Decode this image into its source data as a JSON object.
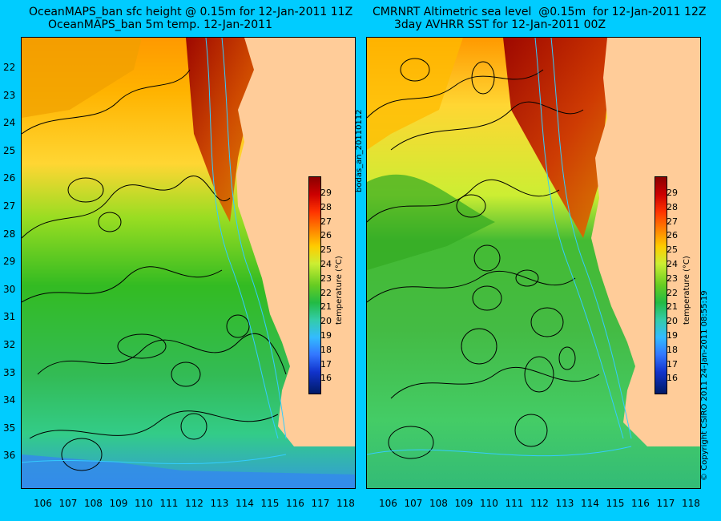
{
  "left_panel": {
    "title_line1": "OceanMAPS_ban sfc height @ 0.15m for 12-Jan-2011 11Z",
    "title_line2": "OceanMAPS_ban 5m temp. 12-Jan-2011"
  },
  "right_panel": {
    "title_line1": "CMRNRT Altimetric sea level  @0.15m  for 12-Jan-2011 12Z",
    "title_line2": "3day AVHRR SST for 12-Jan-2011 00Z"
  },
  "latitude_labels": [
    "22",
    "23",
    "24",
    "25",
    "26",
    "27",
    "28",
    "29",
    "30",
    "31",
    "32",
    "33",
    "34",
    "35",
    "36"
  ],
  "longitude_labels": [
    "106",
    "107",
    "108",
    "109",
    "110",
    "111",
    "112",
    "113",
    "114",
    "115",
    "116",
    "117",
    "118"
  ],
  "colorbar": {
    "title": "temperature (°C)",
    "ticks": [
      "29",
      "28",
      "27",
      "26",
      "25",
      "24",
      "23",
      "22",
      "21",
      "20",
      "19",
      "18",
      "17",
      "16"
    ]
  },
  "side_text_left": "bodas_an_20110112",
  "side_text_right": "© Copyright CSIRO 2011    24-Jan-2011 08:55:19",
  "colors": {
    "background": "#00ccff",
    "land": "#ffcc99",
    "warm": "#b30000",
    "cool": "#0044cc",
    "contour": "#000000",
    "bathymetry": "#33ccff"
  }
}
